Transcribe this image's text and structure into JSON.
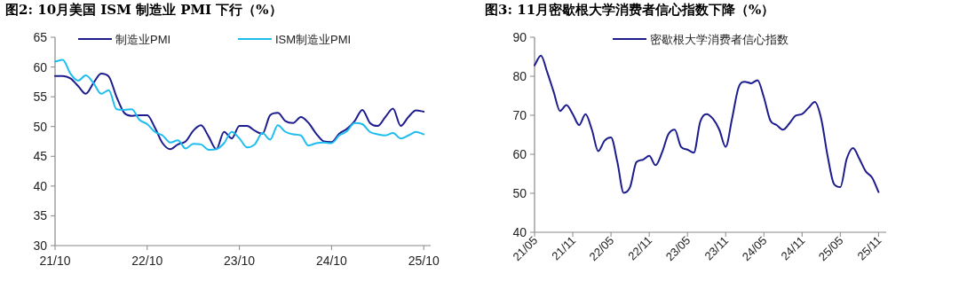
{
  "chart_data": [
    {
      "type": "line",
      "title": "图2:  10月美国 ISM 制造业 PMI 下行（%）",
      "legend": "top",
      "grid": false,
      "categories": [
        "21/10",
        null,
        null,
        null,
        null,
        null,
        null,
        null,
        null,
        null,
        null,
        null,
        "22/10",
        null,
        null,
        null,
        null,
        null,
        null,
        null,
        null,
        null,
        null,
        null,
        "23/10",
        null,
        null,
        null,
        null,
        null,
        null,
        null,
        null,
        null,
        null,
        null,
        "24/10",
        null,
        null,
        null,
        null,
        null,
        null,
        null,
        null,
        null,
        null,
        null,
        "25/10"
      ],
      "ylim": [
        30,
        65
      ],
      "yticks": [
        30,
        35,
        40,
        45,
        50,
        55,
        60,
        65
      ],
      "series": [
        {
          "name": "制造业PMI",
          "color": "#1c1c8e",
          "values": [
            58.5,
            58.5,
            58.1,
            56.8,
            55.5,
            57.3,
            58.9,
            58.4,
            55.0,
            52.3,
            51.8,
            51.9,
            51.9,
            49.8,
            47.2,
            46.2,
            47.0,
            47.5,
            49.3,
            50.2,
            48.3,
            46.2,
            49.1,
            48.0,
            50.1,
            50.1,
            49.3,
            48.8,
            51.9,
            52.3,
            50.9,
            50.6,
            51.6,
            50.6,
            48.8,
            47.5,
            47.4,
            48.8,
            49.6,
            50.9,
            52.8,
            50.6,
            50.1,
            51.6,
            53.0,
            50.1,
            51.6,
            52.7,
            52.5
          ]
        },
        {
          "name": "ISM制造业PMI",
          "color": "#1ebdf0",
          "values": [
            60.9,
            61.2,
            58.9,
            57.7,
            58.6,
            57.3,
            55.5,
            56.1,
            52.9,
            52.8,
            52.9,
            51.1,
            50.4,
            49.1,
            48.5,
            47.3,
            47.7,
            46.3,
            47.1,
            47.0,
            46.1,
            46.2,
            47.2,
            49.1,
            48.0,
            46.5,
            47.0,
            48.9,
            47.8,
            50.2,
            49.1,
            48.7,
            48.5,
            46.8,
            47.2,
            47.3,
            47.2,
            48.5,
            49.2,
            50.6,
            50.4,
            49.1,
            48.7,
            48.5,
            48.9,
            48.0,
            48.5,
            49.1,
            48.7
          ]
        }
      ]
    },
    {
      "type": "line",
      "title": "图3:  11月密歇根大学消费者信心指数下降（%）",
      "legend": "top",
      "grid": false,
      "categories": [
        "21/05",
        null,
        null,
        null,
        null,
        null,
        "21/11",
        null,
        null,
        null,
        null,
        null,
        "22/05",
        null,
        null,
        null,
        null,
        null,
        "22/11",
        null,
        null,
        null,
        null,
        null,
        "23/05",
        null,
        null,
        null,
        null,
        null,
        "23/11",
        null,
        null,
        null,
        null,
        null,
        "24/05",
        null,
        null,
        null,
        null,
        null,
        "24/11",
        null,
        null,
        null,
        null,
        null,
        "25/05",
        null,
        null,
        null,
        null,
        null,
        "25/11"
      ],
      "ylim": [
        40,
        90
      ],
      "yticks": [
        40,
        50,
        60,
        70,
        80,
        90
      ],
      "series": [
        {
          "name": "密歇根大学消费者信心指数",
          "color": "#1c1c8e",
          "values": [
            82.8,
            85.3,
            81.0,
            76.0,
            71.1,
            72.6,
            70.3,
            67.5,
            70.3,
            66.3,
            60.8,
            63.5,
            64.3,
            58.0,
            50.1,
            51.6,
            58.0,
            58.6,
            59.6,
            57.2,
            60.4,
            65.1,
            66.3,
            61.9,
            61.2,
            60.4,
            68.3,
            70.3,
            69.1,
            66.3,
            61.9,
            69.1,
            77.0,
            78.6,
            78.2,
            79.0,
            74.6,
            68.7,
            67.5,
            66.3,
            67.9,
            69.9,
            70.3,
            71.9,
            73.4,
            69.1,
            59.6,
            52.4,
            51.6,
            58.8,
            61.6,
            58.8,
            55.6,
            54.0,
            50.3
          ]
        }
      ]
    }
  ]
}
